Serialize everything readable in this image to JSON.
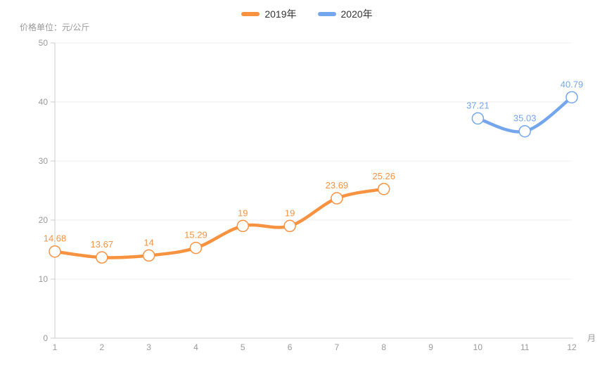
{
  "legend": {
    "items": [
      {
        "label": "2019年"
      },
      {
        "label": "2020年"
      }
    ]
  },
  "chart_data": {
    "type": "line",
    "title": "",
    "xlabel": "月",
    "ylabel": "价格单位：元/公斤",
    "x_ticks": [
      1,
      2,
      3,
      4,
      5,
      6,
      7,
      8,
      9,
      10,
      11,
      12
    ],
    "y_ticks": [
      0,
      10,
      20,
      30,
      40,
      50
    ],
    "ylim": [
      0,
      50
    ],
    "xlim": [
      1,
      12
    ],
    "grid": true,
    "smooth": true,
    "legend_position": "top-center",
    "series": [
      {
        "name": "2019年",
        "color": "#f79340",
        "x": [
          1,
          2,
          3,
          4,
          5,
          6,
          7,
          8
        ],
        "values": [
          14.68,
          13.67,
          14,
          15.29,
          19,
          19,
          23.69,
          25.26
        ],
        "labels": [
          "14.68",
          "13.67",
          "14",
          "15.29",
          "19",
          "19",
          "23.69",
          "25.26"
        ]
      },
      {
        "name": "2020年",
        "color": "#73a6ec",
        "x": [
          10,
          11,
          12
        ],
        "values": [
          37.21,
          35.03,
          40.79
        ],
        "labels": [
          "37.21",
          "35.03",
          "40.79"
        ]
      }
    ]
  },
  "colors": {
    "grid_line": "#eeeeee",
    "axis_line": "#cccccc",
    "tick_label": "#999999",
    "point_fill": "#ffffff",
    "background": "#ffffff"
  }
}
